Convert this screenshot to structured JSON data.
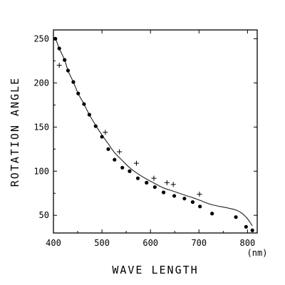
{
  "chart_data": {
    "type": "scatter",
    "xlabel": "WAVE LENGTH",
    "ylabel": "ROTATION ANGLE",
    "x_unit": "(nm)",
    "xlim": [
      400,
      820
    ],
    "ylim": [
      30,
      260
    ],
    "xticks": [
      "400",
      "500",
      "600",
      "700",
      "800"
    ],
    "yticks": [
      "50",
      "100",
      "150",
      "200",
      "250"
    ],
    "grid": false,
    "series": [
      {
        "marker": "dot",
        "x": [
          404,
          412,
          423,
          430,
          441,
          451,
          463,
          474,
          487,
          500,
          513,
          526,
          542,
          557,
          574,
          592,
          609,
          627,
          649,
          670,
          687,
          702,
          727,
          776,
          797,
          810
        ],
        "y": [
          250,
          239,
          226,
          214,
          201,
          188,
          176,
          164,
          151,
          139,
          125,
          113,
          104,
          100,
          92,
          87,
          82,
          76,
          72,
          69,
          65,
          60,
          52,
          48,
          37,
          33
        ]
      },
      {
        "marker": "plus",
        "x": [
          412,
          507,
          536,
          571,
          607,
          634,
          647,
          701
        ],
        "y": [
          220,
          144,
          122,
          109,
          92,
          87,
          85,
          74
        ]
      },
      {
        "marker": "line",
        "x": [
          404,
          412,
          423,
          430,
          441,
          451,
          463,
          474,
          487,
          500,
          513,
          526,
          542,
          557,
          574,
          592,
          609,
          627,
          649,
          670,
          687,
          702,
          727,
          776,
          797,
          810
        ],
        "y": [
          251,
          239,
          226,
          214,
          201,
          188,
          176,
          164,
          152,
          141,
          131,
          121,
          112,
          104,
          97,
          91,
          86,
          81,
          77,
          73,
          70,
          67,
          62,
          56,
          48,
          38
        ]
      }
    ]
  }
}
